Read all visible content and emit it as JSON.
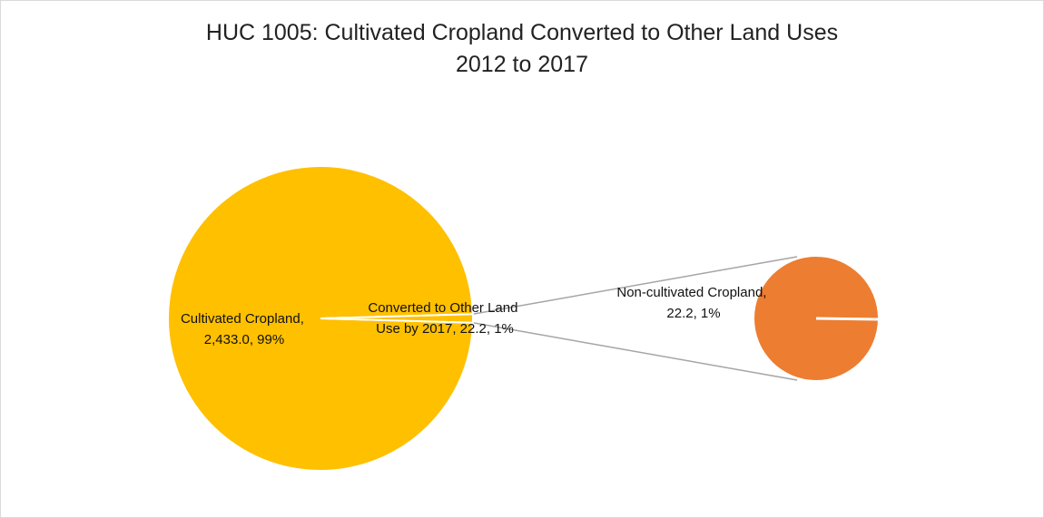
{
  "chart_data": {
    "type": "pie",
    "subtype": "pie-of-pie",
    "title": "HUC 1005: Cultivated Cropland Converted to Other Land Uses",
    "subtitle": "2012 to 2017",
    "main_pie": {
      "slices": [
        {
          "label": "Cultivated Cropland",
          "value": 2433.0,
          "value_text": "2,433.0",
          "percent_text": "99%",
          "color": "#FFC000"
        },
        {
          "label": "Converted to Other Land Use by 2017",
          "value": 22.2,
          "value_text": "22.2",
          "percent_text": "1%",
          "color": "#FFC000"
        }
      ]
    },
    "secondary_pie": {
      "slices": [
        {
          "label": "Non-cultivated Cropland",
          "value": 22.2,
          "value_text": "22.2",
          "percent_text": "1%",
          "color": "#ED7D31"
        }
      ]
    },
    "colors": {
      "main": "#FFC000",
      "secondary": "#ED7D31",
      "connector": "#A5A5A5",
      "separator": "#FFFFFF"
    },
    "legend": "none"
  }
}
